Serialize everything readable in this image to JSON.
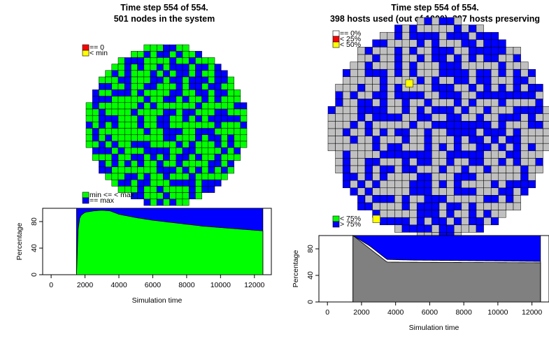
{
  "left_panel": {
    "title_line1": "Time step 554 of 554.",
    "title_line2": "501 nodes in the system",
    "legend_top": [
      {
        "label": "== 0",
        "color": "#ff0000"
      },
      {
        "label": "< min",
        "color": "#ffff00"
      }
    ],
    "legend_bottom": [
      {
        "label": "min <= < max",
        "color": "#00ff00"
      },
      {
        "label": "== max",
        "color": "#0000ff"
      }
    ]
  },
  "right_panel": {
    "title_line1": "Time step 554 of 554.",
    "title_line2": "398 hosts used (out of 1000), 397 hosts preserving",
    "legend_top": [
      {
        "label": "== 0%",
        "color": "#ffffff"
      },
      {
        "label": "< 25%",
        "color": "#ff0000"
      },
      {
        "label": "< 50%",
        "color": "#ffff00"
      }
    ],
    "legend_bottom": [
      {
        "label": "< 75%",
        "color": "#00ff00"
      },
      {
        "label": "> 75%",
        "color": "#0000ff"
      }
    ]
  },
  "chart_data": [
    {
      "type": "area",
      "xlabel": "Simulation time",
      "ylabel": "Percentage",
      "xlim": [
        -500,
        13000
      ],
      "ylim": [
        0,
        100
      ],
      "xticks": [
        0,
        2000,
        4000,
        6000,
        8000,
        10000,
        12000
      ],
      "yticks": [
        0,
        40,
        80
      ],
      "x_start": 1500,
      "x_end": 12500,
      "series": [
        {
          "name": "min <= < max",
          "color": "#00ff00",
          "x": [
            1500,
            1550,
            1700,
            2000,
            2500,
            3000,
            3500,
            4000,
            5000,
            6000,
            7000,
            8000,
            9000,
            10000,
            11000,
            12000,
            12500
          ],
          "y": [
            0,
            60,
            88,
            94,
            96,
            97,
            96,
            91,
            86,
            82,
            79,
            76,
            73,
            71,
            69,
            67,
            66
          ]
        },
        {
          "name": "== max",
          "color": "#0000ff",
          "x": [
            1500,
            12500
          ],
          "y": [
            100,
            100
          ]
        }
      ]
    },
    {
      "type": "area",
      "xlabel": "Simulation time",
      "ylabel": "Percentage",
      "xlim": [
        -500,
        13000
      ],
      "ylim": [
        0,
        100
      ],
      "xticks": [
        0,
        2000,
        4000,
        6000,
        8000,
        10000,
        12000
      ],
      "yticks": [
        0,
        40,
        80
      ],
      "x_start": 1500,
      "x_end": 12500,
      "series": [
        {
          "name": "== 0%",
          "color": "#808080",
          "x": [
            1500,
            2500,
            3500,
            5000,
            7000,
            9000,
            11000,
            12500
          ],
          "y": [
            100,
            80,
            60,
            59.8,
            59.6,
            59.4,
            59.2,
            59
          ]
        },
        {
          "name": "< 25%",
          "color": "#ffffff",
          "x": [
            1500,
            2500,
            3500,
            5000,
            7000,
            9000,
            11000,
            12500
          ],
          "y": [
            100,
            84,
            64,
            63,
            62.5,
            62,
            61.5,
            61
          ]
        },
        {
          "name": "> 75%",
          "color": "#0000ff",
          "x": [
            1500,
            12500
          ],
          "y": [
            100,
            100
          ]
        }
      ]
    }
  ]
}
